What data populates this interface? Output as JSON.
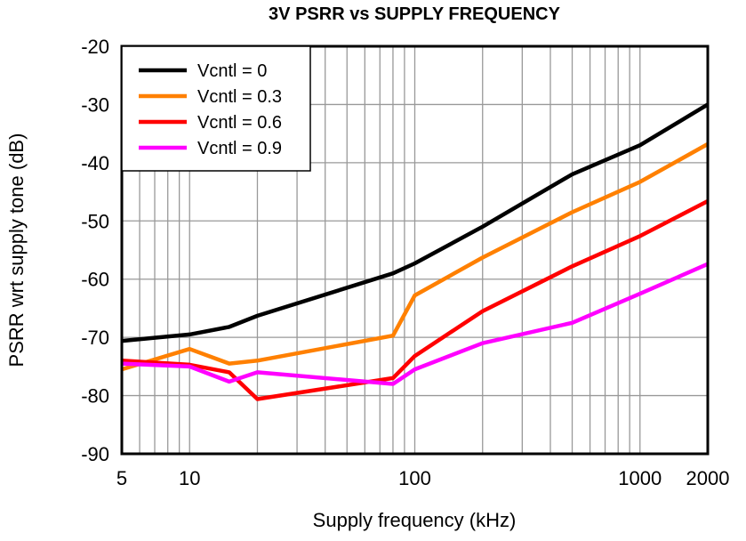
{
  "chart_data": {
    "type": "line",
    "title": "3V PSRR vs SUPPLY FREQUENCY",
    "xlabel": "Supply frequency (kHz)",
    "ylabel": "PSRR wrt supply tone (dB)",
    "xscale": "log",
    "xlim": [
      5,
      2000
    ],
    "ylim": [
      -90,
      -20
    ],
    "xticks": [
      5,
      10,
      100,
      1000,
      2000
    ],
    "xtick_labels": [
      "5",
      "10",
      "100",
      "1000",
      "2000"
    ],
    "yticks": [
      -20,
      -30,
      -40,
      -50,
      -60,
      -70,
      -80,
      -90
    ],
    "ytick_labels": [
      "-20",
      "-30",
      "-40",
      "-50",
      "-60",
      "-70",
      "-80",
      "-90"
    ],
    "grid": true,
    "legend_placement": "top-left",
    "x": [
      5,
      10,
      15,
      20,
      80,
      100,
      200,
      500,
      1000,
      2000
    ],
    "series": [
      {
        "name": "Vcntl = 0",
        "color": "#000000",
        "values": [
          -70.6,
          -69.5,
          -68.2,
          -66.3,
          -59,
          -57.3,
          -51,
          -42,
          -37,
          -30
        ]
      },
      {
        "name": "Vcntl = 0.3",
        "color": "#FF8000",
        "values": [
          -75.5,
          -72,
          -74.5,
          -74,
          -69.7,
          -62.8,
          -56.3,
          -48.5,
          -43.3,
          -36.8
        ]
      },
      {
        "name": "Vcntl = 0.6",
        "color": "#FF0000",
        "values": [
          -74,
          -74.7,
          -76,
          -80.6,
          -77,
          -73.2,
          -65.5,
          -57.8,
          -52.6,
          -46.6
        ]
      },
      {
        "name": "Vcntl = 0.9",
        "color": "#FF00FF",
        "values": [
          -74.5,
          -75,
          -77.6,
          -76,
          -78,
          -75.5,
          -71,
          -67.5,
          -62.5,
          -57.4
        ]
      }
    ]
  }
}
